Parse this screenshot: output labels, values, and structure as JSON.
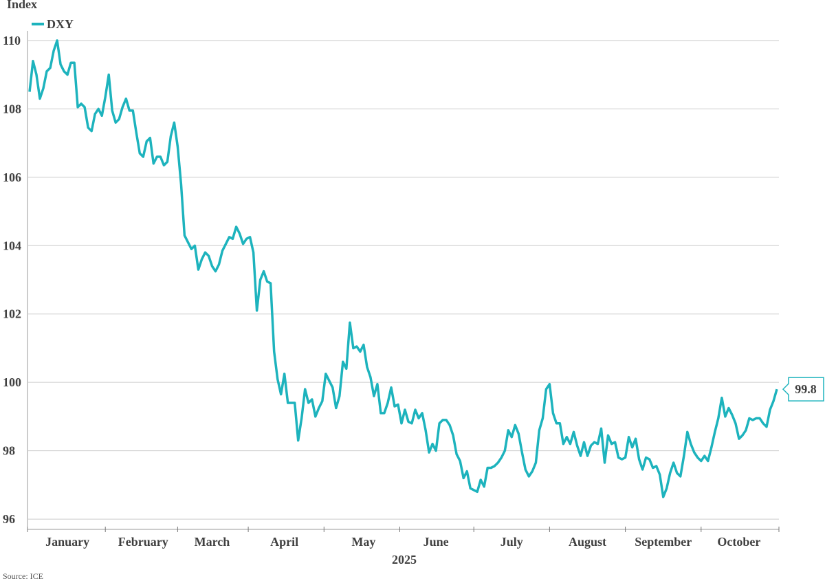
{
  "chart_data": {
    "type": "line",
    "y_label": "Index",
    "x_label": "2025",
    "source": "Source: ICE",
    "xlim": [
      0,
      217
    ],
    "xticks": [
      {
        "value": 11,
        "label": "January"
      },
      {
        "value": 33,
        "label": "February"
      },
      {
        "value": 53,
        "label": "March"
      },
      {
        "value": 74,
        "label": "April"
      },
      {
        "value": 97,
        "label": "May"
      },
      {
        "value": 118,
        "label": "June"
      },
      {
        "value": 140,
        "label": "July"
      },
      {
        "value": 162,
        "label": "August"
      },
      {
        "value": 184,
        "label": "September"
      },
      {
        "value": 206,
        "label": "October"
      }
    ],
    "ylim": [
      95.7,
      110.3
    ],
    "yticks": [
      96,
      98,
      100,
      102,
      104,
      106,
      108,
      110
    ],
    "grid": true,
    "legend": "top-left",
    "series": [
      {
        "name": "DXY",
        "color": "#1db3bd",
        "values": [
          108.5,
          109.4,
          109.0,
          108.3,
          108.6,
          109.1,
          109.2,
          109.7,
          110.0,
          109.3,
          109.1,
          109.0,
          109.35,
          109.35,
          108.05,
          108.15,
          108.05,
          107.45,
          107.35,
          107.85,
          108.0,
          107.8,
          108.35,
          109.0,
          107.95,
          107.6,
          107.7,
          108.05,
          108.3,
          107.95,
          107.95,
          107.3,
          106.7,
          106.6,
          107.05,
          107.15,
          106.4,
          106.6,
          106.6,
          106.35,
          106.45,
          107.2,
          107.6,
          106.9,
          105.8,
          104.3,
          104.1,
          103.9,
          104.0,
          103.3,
          103.6,
          103.8,
          103.7,
          103.4,
          103.25,
          103.45,
          103.85,
          104.05,
          104.25,
          104.2,
          104.55,
          104.35,
          104.05,
          104.2,
          104.25,
          103.8,
          102.1,
          103.0,
          103.25,
          102.95,
          102.9,
          100.9,
          100.1,
          99.65,
          100.25,
          99.4,
          99.4,
          99.4,
          98.3,
          98.95,
          99.8,
          99.4,
          99.5,
          99.0,
          99.25,
          99.45,
          100.25,
          100.05,
          99.85,
          99.25,
          99.6,
          100.6,
          100.4,
          101.75,
          101.0,
          101.05,
          100.9,
          101.1,
          100.45,
          100.15,
          99.6,
          99.95,
          99.1,
          99.1,
          99.4,
          99.85,
          99.3,
          99.35,
          98.8,
          99.2,
          98.85,
          98.8,
          99.2,
          98.95,
          99.1,
          98.6,
          97.95,
          98.2,
          98.0,
          98.8,
          98.9,
          98.9,
          98.75,
          98.45,
          97.9,
          97.7,
          97.2,
          97.4,
          96.9,
          96.85,
          96.8,
          97.15,
          96.95,
          97.5,
          97.5,
          97.55,
          97.65,
          97.8,
          98.0,
          98.6,
          98.4,
          98.75,
          98.5,
          97.95,
          97.45,
          97.25,
          97.4,
          97.65,
          98.6,
          98.95,
          99.8,
          99.95,
          99.1,
          98.8,
          98.8,
          98.2,
          98.4,
          98.2,
          98.55,
          98.15,
          97.85,
          98.25,
          97.85,
          98.15,
          98.25,
          98.2,
          98.65,
          97.65,
          98.45,
          98.2,
          98.25,
          97.8,
          97.75,
          97.8,
          98.4,
          98.1,
          98.35,
          97.75,
          97.45,
          97.8,
          97.75,
          97.5,
          97.55,
          97.3,
          96.65,
          96.9,
          97.35,
          97.65,
          97.35,
          97.25,
          97.85,
          98.55,
          98.2,
          97.95,
          97.8,
          97.7,
          97.85,
          97.7,
          98.1,
          98.55,
          98.95,
          99.55,
          99.0,
          99.25,
          99.05,
          98.8,
          98.35,
          98.45,
          98.6,
          98.95,
          98.9,
          98.95,
          98.95,
          98.8,
          98.7,
          99.2,
          99.45,
          99.8
        ]
      }
    ]
  }
}
